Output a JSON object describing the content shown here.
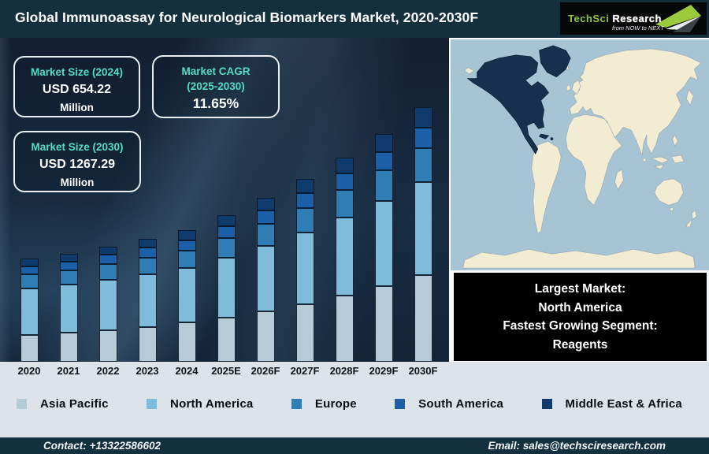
{
  "header": {
    "title": "Global Immunoassay for Neurological Biomarkers Market, 2020-2030F",
    "logo": {
      "brand_primary": "TechSci",
      "brand_secondary": "Research",
      "tagline": "from NOW to NEXT"
    }
  },
  "stat_cards": [
    {
      "label_lines": [
        "Market Size (2024)"
      ],
      "value": "USD 654.22",
      "unit": "Million"
    },
    {
      "label_lines": [
        "Market CAGR",
        "(2025-2030)"
      ],
      "value": "11.65%",
      "unit": ""
    },
    {
      "label_lines": [
        "Market Size (2030)"
      ],
      "value": "USD 1267.29",
      "unit": "Million"
    }
  ],
  "chart_data": {
    "type": "bar",
    "stacked": true,
    "title": "Global Immunoassay for Neurological Biomarkers Market, 2020-2030F",
    "unit": "USD Million",
    "categories": [
      "2020",
      "2021",
      "2022",
      "2023",
      "2024",
      "2025E",
      "2026F",
      "2027F",
      "2028F",
      "2029F",
      "2030F"
    ],
    "series": [
      {
        "name": "Asia Pacific",
        "color": "#b5cbd8",
        "values": [
          133.3,
          144.0,
          158.6,
          174.1,
          196.0,
          219.1,
          251.2,
          287.7,
          329.4,
          376.8,
          430.9
        ]
      },
      {
        "name": "North America",
        "color": "#7fbcdc",
        "values": [
          233.3,
          239.7,
          251.1,
          262.3,
          269.1,
          299.5,
          327.0,
          357.0,
          389.4,
          424.5,
          462.6
        ]
      },
      {
        "name": "Europe",
        "color": "#2f7db5",
        "values": [
          69.2,
          72.5,
          77.6,
          82.1,
          87.7,
          97.9,
          109.3,
          122.0,
          136.2,
          152.1,
          168.6
        ]
      },
      {
        "name": "South America",
        "color": "#1c5fa9",
        "values": [
          41.0,
          43.5,
          46.5,
          49.6,
          53.0,
          59.2,
          66.1,
          73.8,
          82.3,
          91.9,
          103.9
        ]
      },
      {
        "name": "Middle East & Africa",
        "color": "#0e3a6e",
        "values": [
          35.9,
          37.6,
          40.8,
          44.7,
          48.4,
          54.8,
          62.0,
          70.1,
          79.3,
          89.7,
          101.3
        ]
      }
    ],
    "totals": [
      512.7,
      537.3,
      574.6,
      612.8,
      654.22,
      730.44,
      815.54,
      910.55,
      1016.63,
      1135.07,
      1267.29
    ],
    "key_values": {
      "market_size_2024": 654.22,
      "market_size_2030": 1267.29,
      "cagr_2025_2030_pct": 11.65
    },
    "ylim": [
      0,
      1350
    ],
    "gridlines": false,
    "y_axis_visible": false,
    "legend_position": "bottom"
  },
  "map_panel": {
    "highlighted_region": "North America",
    "ocean_color": "#a7c4d5",
    "land_color": "#f2ecd2",
    "highlight_color": "#16304d"
  },
  "callout": {
    "lines": [
      "Largest Market:",
      "North America",
      "Fastest Growing Segment:",
      "Reagents"
    ]
  },
  "footer": {
    "contact": "Contact: +13322586602",
    "email": "Email: sales@techsciresearch.com"
  }
}
